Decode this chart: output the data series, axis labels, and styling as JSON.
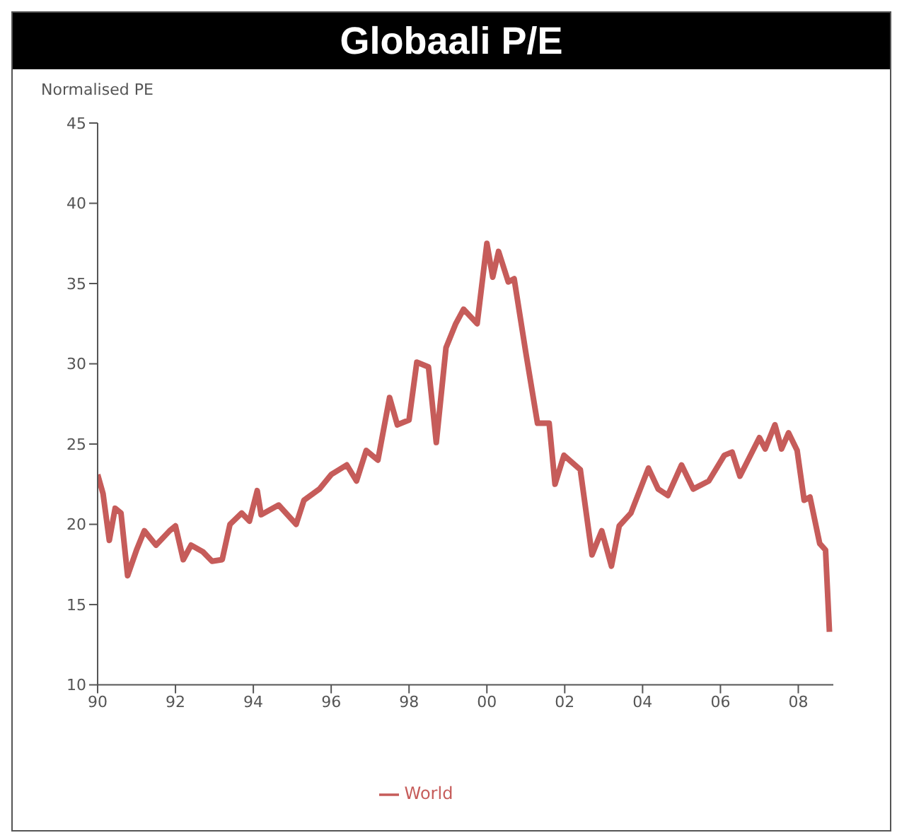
{
  "chart_data": {
    "type": "line",
    "title": "Globaali P/E",
    "ylabel": "Normalised PE",
    "x": [
      1990.0,
      1990.14,
      1990.3,
      1990.45,
      1990.6,
      1990.77,
      1991.0,
      1991.2,
      1991.5,
      1991.85,
      1992.0,
      1992.2,
      1992.4,
      1992.7,
      1992.94,
      1993.2,
      1993.4,
      1993.7,
      1993.9,
      1994.1,
      1994.2,
      1994.65,
      1995.1,
      1995.3,
      1995.7,
      1996.0,
      1996.4,
      1996.65,
      1996.9,
      1997.2,
      1997.5,
      1997.7,
      1998.0,
      1998.2,
      1998.5,
      1998.7,
      1998.95,
      1999.2,
      1999.4,
      1999.75,
      2000.0,
      2000.15,
      2000.3,
      2000.55,
      2000.7,
      2001.0,
      2001.3,
      2001.6,
      2001.75,
      2001.98,
      2002.4,
      2002.7,
      2002.95,
      2003.2,
      2003.4,
      2003.7,
      2004.15,
      2004.4,
      2004.65,
      2005.0,
      2005.3,
      2005.7,
      2006.1,
      2006.3,
      2006.5,
      2007.0,
      2007.15,
      2007.4,
      2007.57,
      2007.75,
      2007.97,
      2008.15,
      2008.3,
      2008.55,
      2008.7,
      2008.8
    ],
    "series": [
      {
        "name": "World",
        "color": "#c65c5a",
        "values": [
          23.1,
          21.9,
          19.0,
          21.0,
          20.7,
          16.8,
          18.4,
          19.6,
          18.7,
          19.6,
          19.9,
          17.8,
          18.7,
          18.3,
          17.7,
          17.8,
          20.0,
          20.7,
          20.2,
          22.1,
          20.6,
          21.2,
          20.0,
          21.5,
          22.2,
          23.1,
          23.7,
          22.7,
          24.6,
          24.0,
          27.9,
          26.2,
          26.5,
          30.1,
          29.8,
          25.1,
          31.0,
          32.5,
          33.4,
          32.5,
          37.5,
          35.4,
          37.0,
          35.1,
          35.3,
          30.7,
          26.3,
          26.3,
          22.5,
          24.3,
          23.4,
          18.1,
          19.6,
          17.4,
          19.9,
          20.7,
          23.5,
          22.2,
          21.8,
          23.7,
          22.2,
          22.7,
          24.3,
          24.5,
          23.0,
          25.4,
          24.7,
          26.2,
          24.7,
          25.7,
          24.6,
          21.5,
          21.7,
          18.8,
          18.4,
          13.3
        ]
      }
    ],
    "xlim": [
      1990,
      2008.9
    ],
    "xticks": [
      {
        "value": 1990,
        "label": "90"
      },
      {
        "value": 1992,
        "label": "92"
      },
      {
        "value": 1994,
        "label": "94"
      },
      {
        "value": 1996,
        "label": "96"
      },
      {
        "value": 1998,
        "label": "98"
      },
      {
        "value": 2000,
        "label": "00"
      },
      {
        "value": 2002,
        "label": "02"
      },
      {
        "value": 2004,
        "label": "04"
      },
      {
        "value": 2006,
        "label": "06"
      },
      {
        "value": 2008,
        "label": "08"
      }
    ],
    "ylim": [
      10,
      45
    ],
    "yticks": [
      10,
      15,
      20,
      25,
      30,
      35,
      40,
      45
    ],
    "grid": false,
    "legend": "bottom",
    "marker": "none",
    "line_style": "solid"
  }
}
